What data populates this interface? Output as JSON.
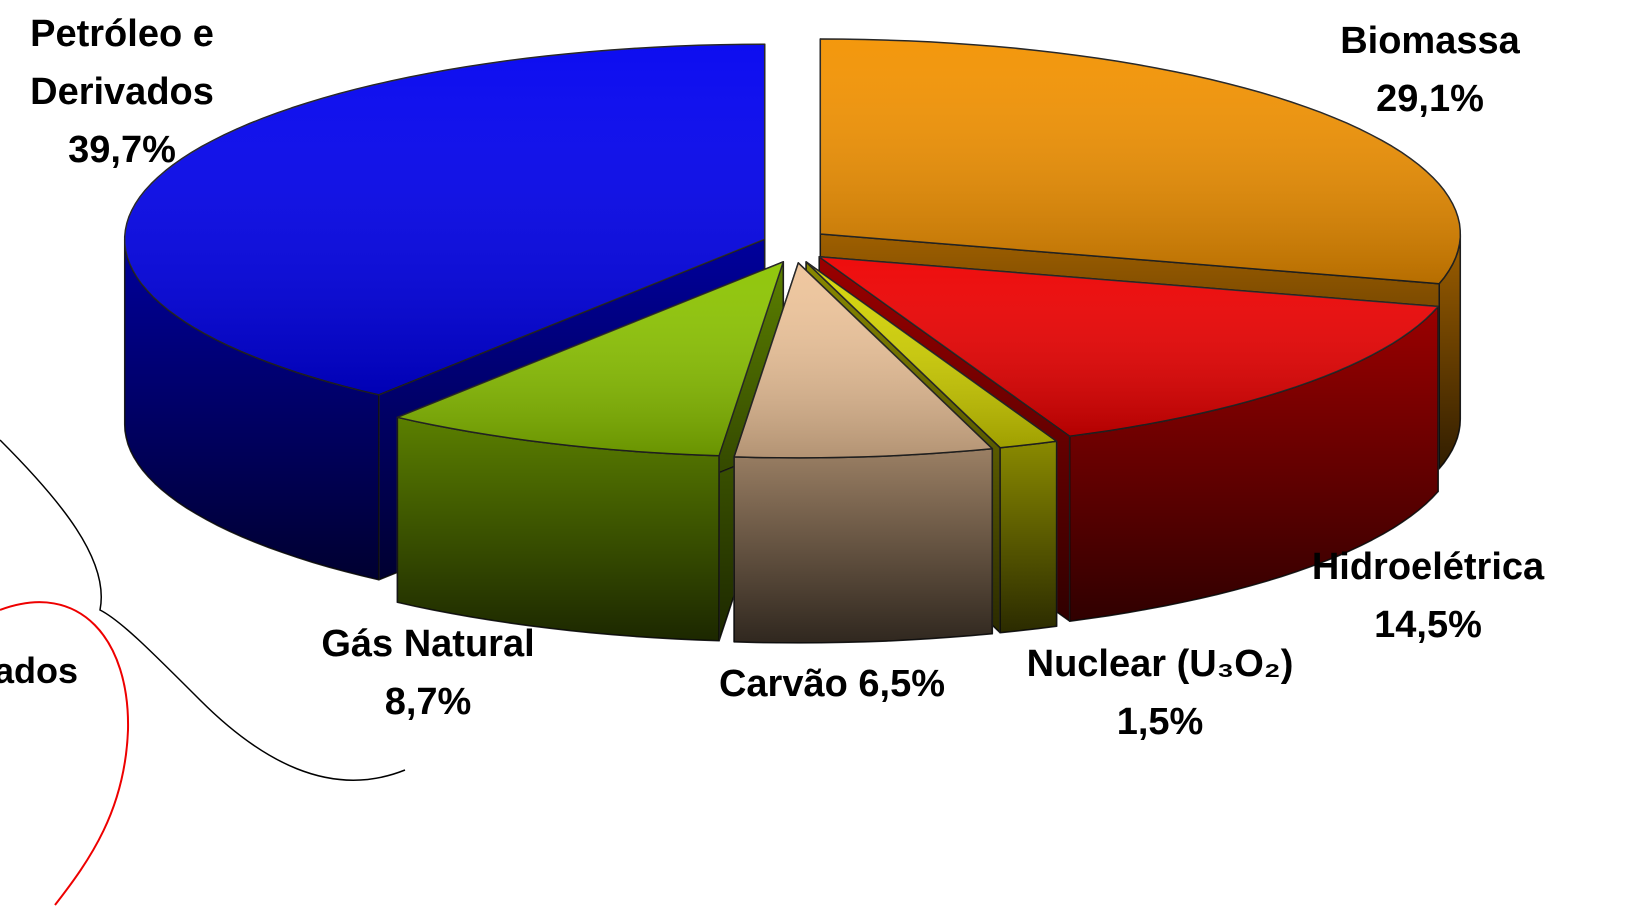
{
  "chart_data": {
    "type": "pie",
    "categories": [
      "Biomassa",
      "Hidroelétrica",
      "Nuclear (U₃O₂)",
      "Carvão",
      "Gás Natural",
      "Petróleo e Derivados"
    ],
    "values": [
      29.1,
      14.5,
      1.5,
      6.5,
      8.7,
      39.7
    ],
    "value_labels": [
      "29,1%",
      "14,5%",
      "1,5%",
      "6,5%",
      "8,7%",
      "39,7%"
    ],
    "colors": [
      "#f39200",
      "#ee0000",
      "#d4d400",
      "#eec49a",
      "#8cc400",
      "#0000f0"
    ],
    "annotations": [
      "ados"
    ]
  }
}
